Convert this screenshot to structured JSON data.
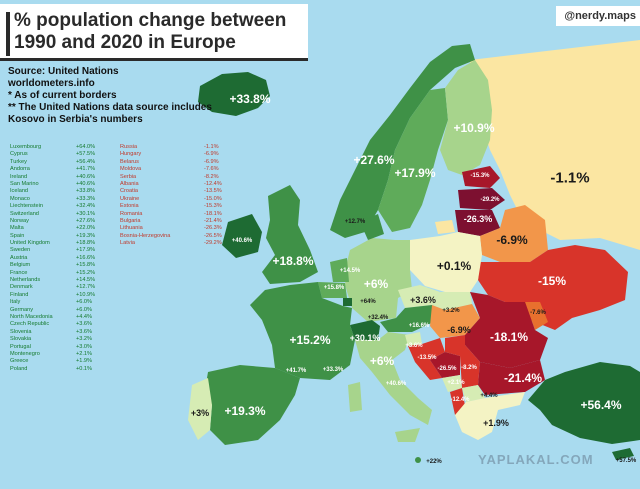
{
  "title": "% population change between\n1990 and 2020 in Europe",
  "credit": "@nerdy.maps",
  "notes": [
    "Source:  United Nations\n               worldometers.info",
    "* As of current borders",
    "** The United Nations data source includes\n     Kosovo in Serbia's numbers"
  ],
  "positive_list": [
    {
      "country": "Luxembourg",
      "value": "+64.0%"
    },
    {
      "country": "Cyprus",
      "value": "+57.5%"
    },
    {
      "country": "Turkey",
      "value": "+56.4%"
    },
    {
      "country": "Andorra",
      "value": "+41.7%"
    },
    {
      "country": "Ireland",
      "value": "+40.6%"
    },
    {
      "country": "San Marino",
      "value": "+40.6%"
    },
    {
      "country": "Iceland",
      "value": "+33.8%"
    },
    {
      "country": "Monaco",
      "value": "+33.3%"
    },
    {
      "country": "Liechtenstein",
      "value": "+32.4%"
    },
    {
      "country": "Switzerland",
      "value": "+30.1%"
    },
    {
      "country": "Norway",
      "value": "+27.6%"
    },
    {
      "country": "Malta",
      "value": "+22.0%"
    },
    {
      "country": "Spain",
      "value": "+19.3%"
    },
    {
      "country": "United Kingdom",
      "value": "+18.8%"
    },
    {
      "country": "Sweden",
      "value": "+17.9%"
    },
    {
      "country": "Austria",
      "value": "+16.6%"
    },
    {
      "country": "Belgium",
      "value": "+15.8%"
    },
    {
      "country": "France",
      "value": "+15.2%"
    },
    {
      "country": "Netherlands",
      "value": "+14.5%"
    },
    {
      "country": "Denmark",
      "value": "+12.7%"
    },
    {
      "country": "Finland",
      "value": "+10.9%"
    },
    {
      "country": "Italy",
      "value": "+6.0%"
    },
    {
      "country": "Germany",
      "value": "+6.0%"
    },
    {
      "country": "North Macedonia",
      "value": "+4.4%"
    },
    {
      "country": "Czech Republic",
      "value": "+3.6%"
    },
    {
      "country": "Slovenia",
      "value": "+3.6%"
    },
    {
      "country": "Slovakia",
      "value": "+3.2%"
    },
    {
      "country": "Portugal",
      "value": "+3.0%"
    },
    {
      "country": "Montenegro",
      "value": "+2.1%"
    },
    {
      "country": "Greece",
      "value": "+1.9%"
    },
    {
      "country": "Poland",
      "value": "+0.1%"
    }
  ],
  "negative_list": [
    {
      "country": "Russia",
      "value": "-1.1%"
    },
    {
      "country": "Hungary",
      "value": "-6.9%"
    },
    {
      "country": "Belarus",
      "value": "-6.9%"
    },
    {
      "country": "Moldova",
      "value": "-7.6%"
    },
    {
      "country": "Serbia",
      "value": "-8.2%"
    },
    {
      "country": "Albania",
      "value": "-12.4%"
    },
    {
      "country": "Croatia",
      "value": "-13.5%"
    },
    {
      "country": "Ukraine",
      "value": "-15.0%"
    },
    {
      "country": "Estonia",
      "value": "-15.3%"
    },
    {
      "country": "Romania",
      "value": "-18.1%"
    },
    {
      "country": "Bulgaria",
      "value": "-21.4%"
    },
    {
      "country": "Lithuania",
      "value": "-26.3%"
    },
    {
      "country": "Bosnia-Herzegovina",
      "value": "-26.5%"
    },
    {
      "country": "Latvia",
      "value": "-29.2%"
    }
  ],
  "map_labels": {
    "iceland": "+33.8%",
    "norway": "+27.6%",
    "sweden": "+17.9%",
    "finland": "+10.9%",
    "russia": "-1.1%",
    "estonia": "-15.3%",
    "latvia": "-29.2%",
    "lithuania": "-26.3%",
    "belarus": "-6.9%",
    "denmark": "+12.7%",
    "ireland": "+40.6%",
    "uk": "+18.8%",
    "netherlands": "+14.5%",
    "belgium": "+15.8%",
    "luxembourg": "+64%",
    "germany": "+6%",
    "poland": "+0.1%",
    "czech": "+3.6%",
    "slovakia": "+3.2%",
    "ukraine": "-15%",
    "moldova": "-7.6%",
    "austria": "+16.6%",
    "liechtenstein": "+32.4%",
    "switzerland": "+30.1%",
    "france": "+15.2%",
    "monaco": "+33.3%",
    "andorra": "+41.7%",
    "hungary": "-6.9%",
    "slovenia": "+3.6%",
    "romania": "-18.1%",
    "croatia": "-13.5%",
    "bosnia": "-26.5%",
    "serbia": "-8.2%",
    "montenegro": "+2.1%",
    "bulgaria": "-21.4%",
    "albania": "-12.4%",
    "north_macedonia": "+4.4%",
    "italy": "+6%",
    "san_marino": "+40.6%",
    "portugal": "+3%",
    "spain": "+19.3%",
    "greece": "+1.9%",
    "turkey": "+56.4%",
    "malta": "+22%",
    "cyprus": "+57.5%"
  },
  "colors": {
    "sea": "#a9dbef",
    "russia": "#fbe6a2",
    "dark_green": "#1e6b33",
    "green": "#3f9147",
    "mid_green": "#5fab5a",
    "light_green": "#a7d48c",
    "pale_green": "#d6ecb4",
    "pale_yellow": "#f4f3c4",
    "orange": "#f2964a",
    "dark_orange": "#e8702e",
    "red": "#d8342a",
    "dark_red": "#a7172a",
    "maroon": "#7d1030"
  },
  "watermark": "YAPLAKAL.COM"
}
